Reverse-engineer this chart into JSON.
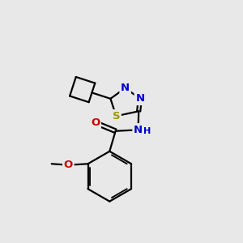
{
  "background_color": "#e8e8e8",
  "bond_color": "#000000",
  "bond_width": 1.6,
  "atom_colors": {
    "S": "#999900",
    "N": "#0000cc",
    "O": "#cc0000",
    "C": "#000000"
  },
  "font_size": 9.5,
  "figsize": [
    3.0,
    3.0
  ],
  "dpi": 100
}
